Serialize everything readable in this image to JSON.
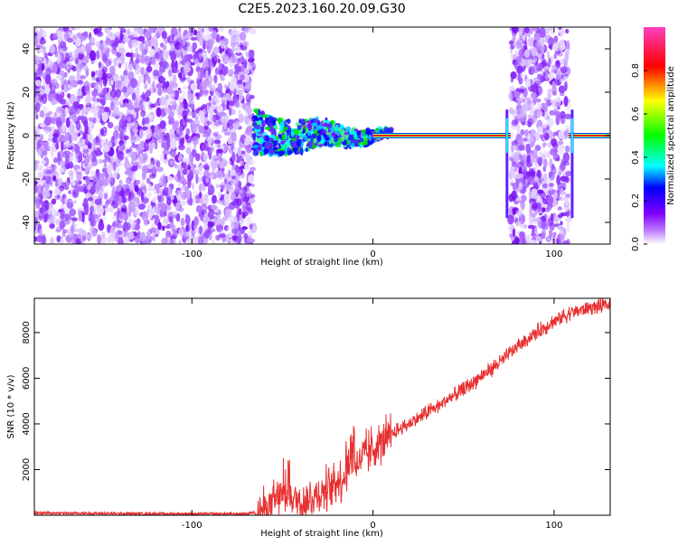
{
  "title": "C2E5.2023.160.20.09.G30",
  "chart_data": [
    {
      "type": "heatmap",
      "title": "C2E5.2023.160.20.09.G30",
      "xlabel": "Height of straight line (km)",
      "ylabel": "Frequency (Hz)",
      "xlim": [
        -187,
        131
      ],
      "ylim": [
        -50,
        50
      ],
      "x_ticks": [
        -100,
        0,
        100
      ],
      "y_ticks": [
        -40,
        -20,
        0,
        20,
        40
      ],
      "colorbar": {
        "label": "Normalized spectral amplitude",
        "range": [
          0,
          1
        ],
        "ticks": [
          0.0,
          0.2,
          0.4,
          0.6,
          0.8
        ],
        "colormap": [
          "#ffffff",
          "#8000ff",
          "#0000ff",
          "#00ffff",
          "#00ff00",
          "#ffff00",
          "#ff0000",
          "#ff00ff"
        ]
      },
      "regions": [
        {
          "name": "noise",
          "x_range": [
            -187,
            -66
          ],
          "freq_range": [
            -50,
            50
          ],
          "level": 0.15
        },
        {
          "name": "transition",
          "x_range": [
            -66,
            10
          ],
          "freq_range": [
            -10,
            8
          ],
          "level": 0.35
        },
        {
          "name": "carrier",
          "x_range": [
            0,
            131
          ],
          "freq": 0,
          "level": 0.9
        },
        {
          "name": "noise",
          "x_range": [
            76,
            108
          ],
          "freq_range": [
            -50,
            50
          ],
          "level": 0.15
        }
      ],
      "grid": false
    },
    {
      "type": "line",
      "xlabel": "Height of straight line (km)",
      "ylabel": "SNR (10 * v/v)",
      "xlim": [
        -187,
        131
      ],
      "ylim": [
        0,
        9500
      ],
      "x_ticks": [
        -100,
        0,
        100
      ],
      "y_ticks": [
        2000,
        4000,
        6000,
        8000
      ],
      "color": "#e83030",
      "series": [
        {
          "x": [
            -187,
            -150,
            -100,
            -70,
            -62,
            -55,
            -50,
            -45,
            -40,
            -35,
            -30,
            -25,
            -20,
            -15,
            -10,
            -5,
            0,
            5,
            10,
            15,
            20,
            30,
            40,
            50,
            60,
            70,
            80,
            90,
            100,
            110,
            120,
            131
          ],
          "values": [
            100,
            80,
            60,
            60,
            200,
            500,
            900,
            800,
            600,
            700,
            900,
            1200,
            1500,
            1700,
            2200,
            2600,
            2900,
            3200,
            3500,
            3800,
            4000,
            4500,
            5000,
            5500,
            6100,
            6700,
            7400,
            8000,
            8500,
            8900,
            9100,
            9200
          ]
        }
      ],
      "grid": false
    }
  ]
}
